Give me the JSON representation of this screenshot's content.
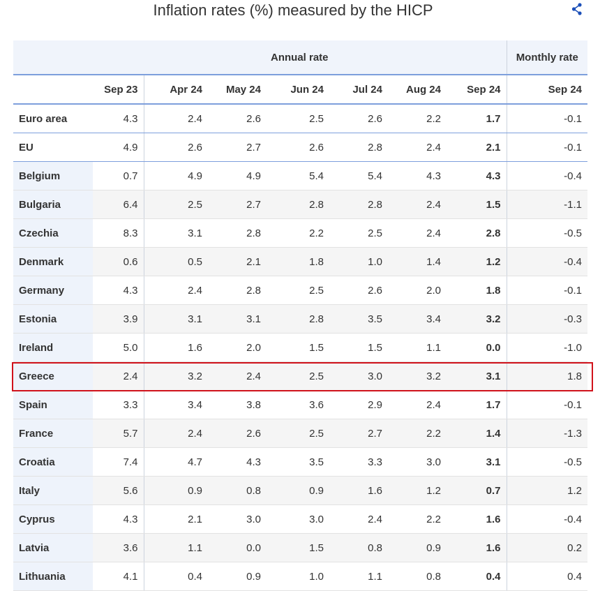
{
  "header": {
    "title": "Inflation rates (%) measured by the HICP"
  },
  "table": {
    "group_headers": [
      "Annual rate",
      "Monthly rate"
    ],
    "column_headers": [
      "Sep 23",
      "Apr 24",
      "May 24",
      "Jun 24",
      "Jul 24",
      "Aug 24",
      "Sep 24",
      "Sep 24"
    ],
    "rows": [
      [
        "Euro area",
        "4.3",
        "2.4",
        "2.6",
        "2.5",
        "2.6",
        "2.2",
        "1.7",
        "-0.1"
      ],
      [
        "EU",
        "4.9",
        "2.6",
        "2.7",
        "2.6",
        "2.8",
        "2.4",
        "2.1",
        "-0.1"
      ],
      [
        "Belgium",
        "0.7",
        "4.9",
        "4.9",
        "5.4",
        "5.4",
        "4.3",
        "4.3",
        "-0.4"
      ],
      [
        "Bulgaria",
        "6.4",
        "2.5",
        "2.7",
        "2.8",
        "2.8",
        "2.4",
        "1.5",
        "-1.1"
      ],
      [
        "Czechia",
        "8.3",
        "3.1",
        "2.8",
        "2.2",
        "2.5",
        "2.4",
        "2.8",
        "-0.5"
      ],
      [
        "Denmark",
        "0.6",
        "0.5",
        "2.1",
        "1.8",
        "1.0",
        "1.4",
        "1.2",
        "-0.4"
      ],
      [
        "Germany",
        "4.3",
        "2.4",
        "2.8",
        "2.5",
        "2.6",
        "2.0",
        "1.8",
        "-0.1"
      ],
      [
        "Estonia",
        "3.9",
        "3.1",
        "3.1",
        "2.8",
        "3.5",
        "3.4",
        "3.2",
        "-0.3"
      ],
      [
        "Ireland",
        "5.0",
        "1.6",
        "2.0",
        "1.5",
        "1.5",
        "1.1",
        "0.0",
        "-1.0"
      ],
      [
        "Greece",
        "2.4",
        "3.2",
        "2.4",
        "2.5",
        "3.0",
        "3.2",
        "3.1",
        "1.8"
      ],
      [
        "Spain",
        "3.3",
        "3.4",
        "3.8",
        "3.6",
        "2.9",
        "2.4",
        "1.7",
        "-0.1"
      ],
      [
        "France",
        "5.7",
        "2.4",
        "2.6",
        "2.5",
        "2.7",
        "2.2",
        "1.4",
        "-1.3"
      ],
      [
        "Croatia",
        "7.4",
        "4.7",
        "4.3",
        "3.5",
        "3.3",
        "3.0",
        "3.1",
        "-0.5"
      ],
      [
        "Italy",
        "5.6",
        "0.9",
        "0.8",
        "0.9",
        "1.6",
        "1.2",
        "0.7",
        "1.2"
      ],
      [
        "Cyprus",
        "4.3",
        "2.1",
        "3.0",
        "3.0",
        "2.4",
        "2.2",
        "1.6",
        "-0.4"
      ],
      [
        "Latvia",
        "3.6",
        "1.1",
        "0.0",
        "1.5",
        "0.8",
        "0.9",
        "1.6",
        "0.2"
      ],
      [
        "Lithuania",
        "4.1",
        "0.4",
        "0.9",
        "1.0",
        "1.1",
        "0.8",
        "0.4",
        "0.4"
      ]
    ]
  }
}
